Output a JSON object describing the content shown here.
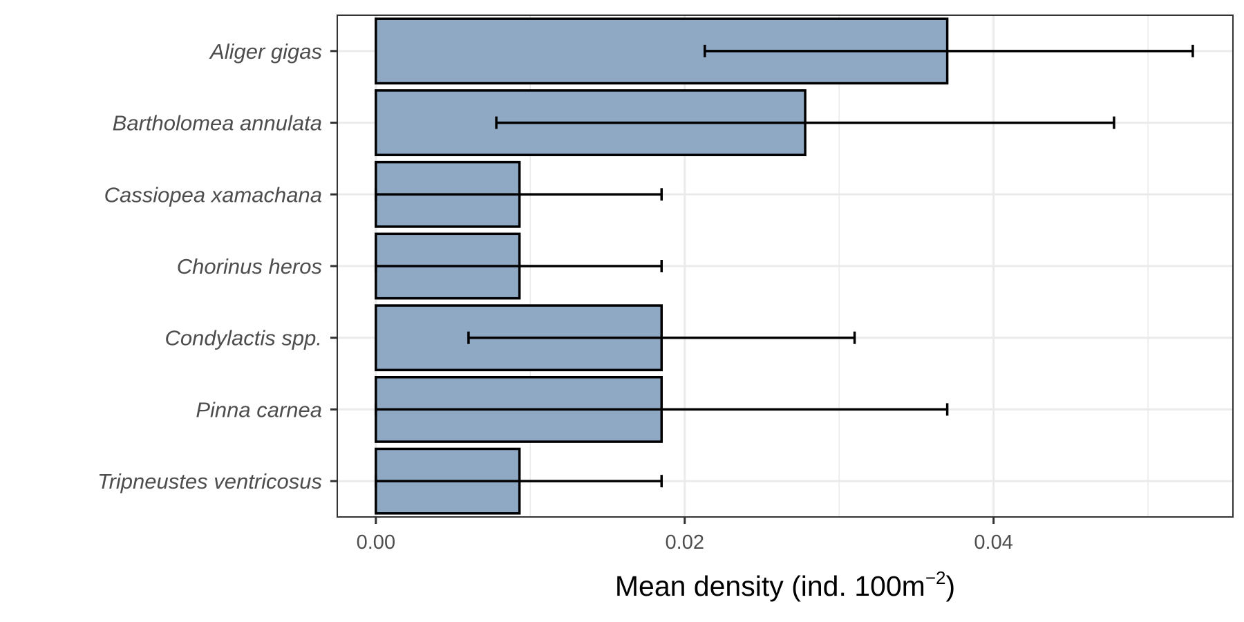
{
  "chart_data": {
    "type": "bar",
    "orientation": "horizontal",
    "categories": [
      "Aliger gigas",
      "Bartholomea annulata",
      "Cassiopea xamachana",
      "Chorinus heros",
      "Condylactis spp.",
      "Pinna carnea",
      "Tripneustes ventricosus"
    ],
    "values": [
      0.037,
      0.0278,
      0.0093,
      0.0093,
      0.0185,
      0.0185,
      0.0093
    ],
    "error_low": [
      0.0213,
      0.0078,
      0.0,
      0.0,
      0.006,
      0.0,
      0.0
    ],
    "error_high": [
      0.0529,
      0.0478,
      0.0185,
      0.0185,
      0.031,
      0.037,
      0.0185
    ],
    "xlabel_main": "Mean density (ind. 100m",
    "xlabel_sup": "−2",
    "xlabel_end": ")",
    "ylabel": "",
    "xlim": [
      -0.0025,
      0.0555
    ],
    "x_ticks": [
      0.0,
      0.02,
      0.04
    ],
    "x_tick_labels": [
      "0.00",
      "0.02",
      "0.04"
    ],
    "grid": true,
    "legend": "none",
    "colors": {
      "bar_fill": "#8fa8c4",
      "bar_stroke": "#000000",
      "grid": "#ebebeb",
      "panel_border": "#333333",
      "tick_text": "#4d4d4d"
    }
  }
}
